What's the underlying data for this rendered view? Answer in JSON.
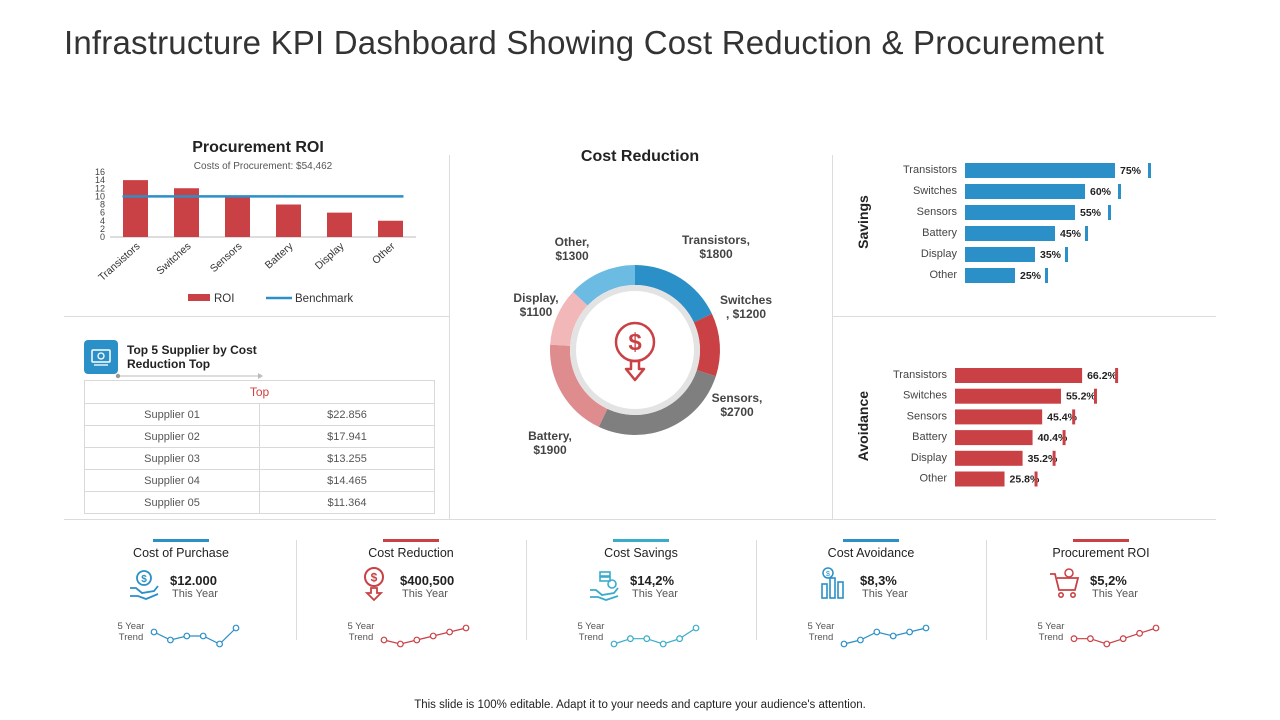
{
  "page": {
    "title": "Infrastructure KPI Dashboard Showing Cost Reduction & Procurement",
    "footer": "This slide is 100% editable. Adapt it to your needs and capture your audience's attention."
  },
  "colors": {
    "red": "#c94145",
    "blue": "#2b8fc8",
    "gray": "#7f7f7f",
    "pink": "#e8a1a3",
    "lightblue": "#6bbbe3"
  },
  "chart_data": [
    {
      "id": "procurement_roi",
      "type": "bar",
      "title": "Procurement ROI",
      "subtitle": "Costs of Procurement: $54,462",
      "categories": [
        "Transistors",
        "Switches",
        "Sensors",
        "Battery",
        "Display",
        "Other"
      ],
      "series": [
        {
          "name": "ROI",
          "type": "bar",
          "values": [
            14,
            12,
            10,
            8,
            6,
            4
          ]
        },
        {
          "name": "Benchmark",
          "type": "line",
          "values": [
            10,
            10,
            10,
            10,
            10,
            10
          ]
        }
      ],
      "yticks": [
        "16",
        "14",
        "12",
        "10",
        "8",
        "6",
        "4",
        "2",
        "0"
      ],
      "ylim": [
        0,
        16
      ]
    },
    {
      "id": "cost_reduction",
      "type": "pie",
      "title": "Cost Reduction",
      "slices": [
        {
          "name": "Transistors",
          "value": 1800,
          "label_line1": "Transistors,",
          "label_line2": "$1800"
        },
        {
          "name": "Switches",
          "value": 1200,
          "label_line1": "Switches",
          "label_line2": ", $1200"
        },
        {
          "name": "Sensors",
          "value": 2700,
          "label_line1": "Sensors,",
          "label_line2": "$2700"
        },
        {
          "name": "Battery",
          "value": 1900,
          "label_line1": "Battery,",
          "label_line2": "$1900"
        },
        {
          "name": "Display",
          "value": 1100,
          "label_line1": "Display,",
          "label_line2": "$1100"
        },
        {
          "name": "Other",
          "value": 1300,
          "label_line1": "Other,",
          "label_line2": "$1300"
        }
      ]
    },
    {
      "id": "savings",
      "type": "bar",
      "orientation": "horizontal",
      "ylabel": "Savings",
      "categories": [
        "Transistors",
        "Switches",
        "Sensors",
        "Battery",
        "Display",
        "Other"
      ],
      "values": [
        75,
        60,
        55,
        45,
        35,
        25
      ],
      "labels": [
        "75%",
        "60%",
        "55%",
        "45%",
        "35%",
        "25%"
      ],
      "xlim": [
        0,
        100
      ]
    },
    {
      "id": "avoidance",
      "type": "bar",
      "orientation": "horizontal",
      "ylabel": "Avoidance",
      "categories": [
        "Transistors",
        "Switches",
        "Sensors",
        "Battery",
        "Display",
        "Other"
      ],
      "values": [
        66.2,
        55.2,
        45.4,
        40.4,
        35.2,
        25.8
      ],
      "labels": [
        "66.2%",
        "55.2%",
        "45.4%",
        "40.4%",
        "35.2%",
        "25.8%"
      ],
      "xlim": [
        0,
        100
      ]
    },
    {
      "id": "trend_purchase",
      "type": "line",
      "values": [
        4,
        2,
        3,
        3,
        1,
        5
      ]
    },
    {
      "id": "trend_reduction",
      "type": "line",
      "values": [
        2,
        1,
        2,
        3,
        4,
        5
      ]
    },
    {
      "id": "trend_savings",
      "type": "line",
      "values": [
        2,
        3,
        3,
        2,
        3,
        5
      ]
    },
    {
      "id": "trend_avoidance",
      "type": "line",
      "values": [
        1,
        2,
        4,
        3,
        4,
        5
      ]
    },
    {
      "id": "trend_roi",
      "type": "line",
      "values": [
        3,
        3,
        2,
        3,
        4,
        5
      ]
    }
  ],
  "suppliers": {
    "title_line1": "Top 5 Supplier by Cost",
    "title_line2": "Reduction Top",
    "header": "Top",
    "rows": [
      {
        "name": "Supplier 01",
        "value": "$22.856"
      },
      {
        "name": "Supplier 02",
        "value": "$17.941"
      },
      {
        "name": "Supplier 03",
        "value": "$13.255"
      },
      {
        "name": "Supplier 04",
        "value": "$14.465"
      },
      {
        "name": "Supplier 05",
        "value": "$11.364"
      }
    ]
  },
  "kpis": [
    {
      "title": "Cost of Purchase",
      "value": "$12.000",
      "sub": "This Year",
      "trend_line1": "5 Year",
      "trend_line2": "Trend",
      "color": "#2b8fc8",
      "icon": "money-hand-icon"
    },
    {
      "title": "Cost Reduction",
      "value": "$400,500",
      "sub": "This Year",
      "trend_line1": "5 Year",
      "trend_line2": "Trend",
      "color": "#c94145",
      "icon": "dollar-down-icon"
    },
    {
      "title": "Cost Savings",
      "value": "$14,2%",
      "sub": "This Year",
      "trend_line1": "5 Year",
      "trend_line2": "Trend",
      "color": "#3aaccb",
      "icon": "coins-hand-icon"
    },
    {
      "title": "Cost Avoidance",
      "value": "$8,3%",
      "sub": "This Year",
      "trend_line1": "5 Year",
      "trend_line2": "Trend",
      "color": "#2b8fc8",
      "icon": "bar-dollar-icon"
    },
    {
      "title": "Procurement ROI",
      "value": "$5,2%",
      "sub": "This Year",
      "trend_line1": "5 Year",
      "trend_line2": "Trend",
      "color": "#c94145",
      "icon": "cart-icon"
    }
  ]
}
